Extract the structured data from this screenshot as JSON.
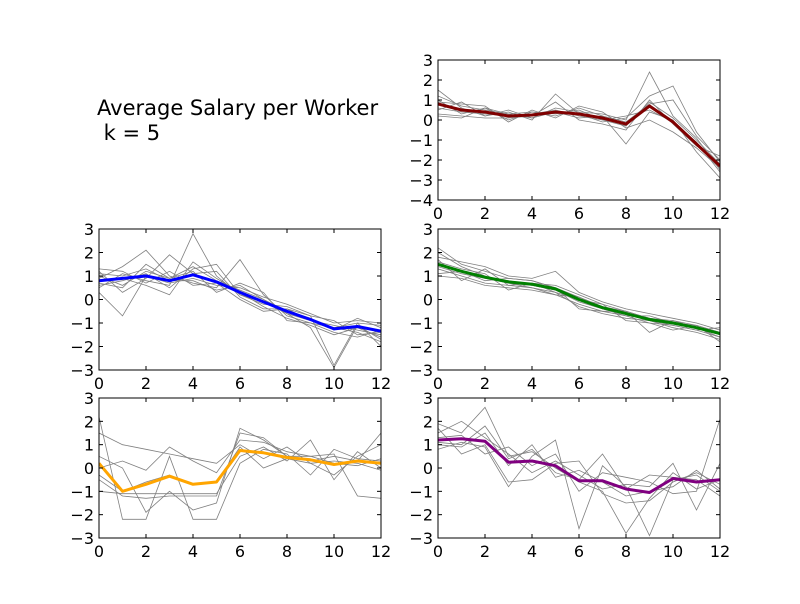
{
  "figure": {
    "title_line1": "Average Salary per Worker",
    "title_line2": " k = 5"
  },
  "chart_data": [
    {
      "type": "line",
      "panel": "top-right",
      "x": [
        0,
        1,
        2,
        3,
        4,
        5,
        6,
        7,
        8,
        9,
        10,
        11,
        12
      ],
      "xlim": [
        0,
        12
      ],
      "ylim": [
        -4,
        3
      ],
      "xticks": [
        0,
        2,
        4,
        6,
        8,
        10,
        12
      ],
      "yticks": [
        -4,
        -3,
        -2,
        -1,
        0,
        1,
        2,
        3
      ],
      "centroid_color": "#800000",
      "centroid": [
        0.8,
        0.5,
        0.4,
        0.2,
        0.25,
        0.4,
        0.3,
        0.1,
        -0.2,
        0.7,
        -0.1,
        -1.2,
        -2.3
      ],
      "members": [
        [
          0.6,
          0.4,
          0.3,
          0.2,
          0.3,
          0.5,
          0.2,
          0.0,
          -0.3,
          0.9,
          0.1,
          -1.0,
          -2.2
        ],
        [
          1.2,
          0.7,
          0.5,
          0.3,
          0.1,
          0.6,
          0.4,
          0.3,
          0.0,
          2.4,
          0.2,
          -0.9,
          -2.5
        ],
        [
          0.2,
          0.1,
          0.6,
          0.0,
          0.4,
          0.2,
          0.6,
          0.2,
          -1.2,
          0.4,
          0.0,
          -1.6,
          -2.9
        ],
        [
          1.5,
          0.6,
          0.2,
          0.4,
          0.0,
          1.3,
          0.3,
          -0.1,
          0.1,
          1.2,
          1.7,
          -0.6,
          -2.1
        ],
        [
          0.9,
          0.8,
          0.7,
          -0.1,
          0.5,
          0.1,
          0.7,
          0.4,
          -0.4,
          0.0,
          -0.6,
          -1.4,
          -2.4
        ],
        [
          0.3,
          0.2,
          0.1,
          0.1,
          0.2,
          0.9,
          0.0,
          -0.2,
          -0.5,
          1.0,
          -0.2,
          -1.3,
          -1.8
        ],
        [
          1.0,
          0.3,
          0.6,
          0.3,
          0.4,
          0.3,
          0.5,
          0.0,
          0.2,
          0.5,
          -0.1,
          -1.1,
          -2.6
        ],
        [
          0.5,
          0.9,
          0.2,
          0.5,
          0.1,
          0.4,
          0.1,
          0.2,
          -0.1,
          0.8,
          1.0,
          -0.8,
          -2.0
        ]
      ]
    },
    {
      "type": "line",
      "panel": "middle-left",
      "x": [
        0,
        1,
        2,
        3,
        4,
        5,
        6,
        7,
        8,
        9,
        10,
        11,
        12
      ],
      "xlim": [
        0,
        12
      ],
      "ylim": [
        -3,
        3
      ],
      "xticks": [
        0,
        2,
        4,
        6,
        8,
        10,
        12
      ],
      "yticks": [
        -3,
        -2,
        -1,
        0,
        1,
        2,
        3
      ],
      "centroid_color": "#0000ff",
      "centroid": [
        0.8,
        0.9,
        1.0,
        0.8,
        1.05,
        0.75,
        0.3,
        -0.1,
        -0.5,
        -0.85,
        -1.25,
        -1.15,
        -1.35
      ],
      "members": [
        [
          1.0,
          0.6,
          1.2,
          0.9,
          1.4,
          0.8,
          0.4,
          0.0,
          -0.6,
          -0.9,
          -1.1,
          -1.3,
          -1.5
        ],
        [
          0.5,
          1.1,
          0.8,
          0.6,
          2.8,
          1.0,
          0.2,
          -0.2,
          -0.3,
          -0.7,
          -2.8,
          -1.0,
          -1.1
        ],
        [
          0.9,
          1.4,
          2.1,
          1.0,
          0.7,
          0.5,
          1.7,
          0.2,
          -0.7,
          -1.0,
          -1.4,
          -1.6,
          -1.3
        ],
        [
          1.2,
          0.3,
          0.9,
          1.9,
          1.1,
          1.2,
          0.1,
          -0.4,
          -0.4,
          -0.9,
          -1.2,
          -1.4,
          -1.8
        ],
        [
          0.3,
          -0.7,
          1.0,
          0.7,
          0.9,
          0.6,
          0.5,
          0.1,
          -0.2,
          -0.6,
          -1.0,
          -0.9,
          -1.0
        ],
        [
          0.8,
          0.9,
          0.6,
          0.2,
          1.6,
          0.9,
          0.3,
          -0.3,
          -0.8,
          -1.1,
          -1.5,
          -1.2,
          -1.6
        ],
        [
          1.1,
          1.0,
          1.3,
          0.8,
          0.8,
          0.4,
          0.6,
          0.0,
          -0.5,
          -0.8,
          -1.3,
          -0.8,
          -1.2
        ],
        [
          0.6,
          0.8,
          1.1,
          0.5,
          1.3,
          1.5,
          0.2,
          -0.1,
          -0.6,
          -1.2,
          -2.9,
          -1.1,
          -1.7
        ],
        [
          1.3,
          1.2,
          0.7,
          1.2,
          0.6,
          0.7,
          0.0,
          -0.5,
          -0.4,
          -0.7,
          -0.9,
          -1.5,
          -1.4
        ],
        [
          0.7,
          0.5,
          1.5,
          0.9,
          1.2,
          0.3,
          0.7,
          0.3,
          -0.9,
          -1.0,
          -1.2,
          -1.0,
          -2.0
        ]
      ]
    },
    {
      "type": "line",
      "panel": "middle-right",
      "x": [
        0,
        1,
        2,
        3,
        4,
        5,
        6,
        7,
        8,
        9,
        10,
        11,
        12
      ],
      "xlim": [
        0,
        12
      ],
      "ylim": [
        -3,
        3
      ],
      "xticks": [
        0,
        2,
        4,
        6,
        8,
        10,
        12
      ],
      "yticks": [
        -3,
        -2,
        -1,
        0,
        1,
        2,
        3
      ],
      "centroid_color": "#008000",
      "centroid": [
        1.5,
        1.2,
        0.95,
        0.75,
        0.65,
        0.45,
        0.0,
        -0.35,
        -0.6,
        -0.85,
        -1.0,
        -1.2,
        -1.45
      ],
      "members": [
        [
          2.2,
          1.5,
          1.2,
          0.9,
          0.8,
          0.5,
          0.1,
          -0.3,
          -0.5,
          -0.8,
          -0.9,
          -1.1,
          -1.4
        ],
        [
          1.0,
          0.9,
          0.6,
          0.5,
          0.4,
          0.2,
          -0.2,
          -0.5,
          -0.7,
          -1.0,
          -1.1,
          -1.3,
          -1.6
        ],
        [
          1.8,
          1.6,
          1.4,
          1.0,
          0.9,
          1.2,
          0.3,
          -0.1,
          -0.4,
          -0.6,
          -0.8,
          -1.0,
          -1.3
        ],
        [
          1.3,
          1.0,
          0.7,
          0.6,
          0.5,
          0.3,
          -0.3,
          -0.6,
          -0.8,
          -0.9,
          -1.2,
          -1.4,
          -1.7
        ],
        [
          1.6,
          1.3,
          1.1,
          0.4,
          0.7,
          0.6,
          0.2,
          -0.2,
          -0.5,
          -1.4,
          -0.9,
          -1.2,
          -1.5
        ],
        [
          1.4,
          1.1,
          0.9,
          0.8,
          0.6,
          0.4,
          -0.1,
          -0.4,
          -0.7,
          -0.7,
          -1.0,
          -1.1,
          -1.8
        ],
        [
          2.0,
          1.4,
          1.0,
          0.7,
          0.5,
          0.2,
          0.1,
          -0.3,
          -0.6,
          -0.9,
          -1.1,
          -1.3,
          -1.2
        ],
        [
          1.1,
          1.2,
          0.8,
          0.9,
          0.8,
          0.5,
          -0.4,
          -0.5,
          -0.5,
          -0.8,
          -1.0,
          -1.2,
          -1.6
        ],
        [
          1.7,
          0.8,
          1.3,
          0.6,
          0.7,
          0.3,
          0.0,
          -0.2,
          -0.9,
          -1.0,
          -1.3,
          -1.1,
          -1.4
        ],
        [
          1.5,
          1.2,
          0.9,
          0.7,
          0.6,
          0.4,
          0.1,
          -0.4,
          -0.6,
          -0.8,
          -1.0,
          -1.2,
          -1.5
        ]
      ]
    },
    {
      "type": "line",
      "panel": "bottom-left",
      "x": [
        0,
        1,
        2,
        3,
        4,
        5,
        6,
        7,
        8,
        9,
        10,
        11,
        12
      ],
      "xlim": [
        0,
        12
      ],
      "ylim": [
        -3,
        3
      ],
      "xticks": [
        0,
        2,
        4,
        6,
        8,
        10,
        12
      ],
      "yticks": [
        -3,
        -2,
        -1,
        0,
        1,
        2,
        3
      ],
      "centroid_color": "#ffa500",
      "centroid": [
        0.2,
        -1.0,
        -0.7,
        -0.35,
        -0.7,
        -0.6,
        0.75,
        0.65,
        0.45,
        0.35,
        0.15,
        0.3,
        0.2
      ],
      "members": [
        [
          -0.5,
          -1.2,
          -1.3,
          -1.2,
          -1.2,
          -1.2,
          1.5,
          1.3,
          0.5,
          0.3,
          0.5,
          0.3,
          1.5
        ],
        [
          1.5,
          1.0,
          0.8,
          0.6,
          0.4,
          0.2,
          1.0,
          0.4,
          0.9,
          0.2,
          -0.3,
          0.5,
          1.0
        ],
        [
          2.2,
          -2.2,
          -2.2,
          0.5,
          -2.2,
          -2.2,
          0.2,
          0.8,
          0.6,
          -0.3,
          0.8,
          0.4,
          0.3
        ],
        [
          0.5,
          0.0,
          -1.9,
          -1.0,
          -1.8,
          -1.5,
          1.7,
          1.2,
          0.5,
          0.5,
          0.6,
          -1.2,
          -1.3
        ],
        [
          -1.0,
          -1.1,
          -1.1,
          -1.1,
          -1.1,
          -1.1,
          0.5,
          0.9,
          0.3,
          1.2,
          -0.5,
          0.7,
          0.0
        ],
        [
          0.0,
          0.3,
          -0.1,
          0.9,
          0.3,
          -0.2,
          1.2,
          1.1,
          0.7,
          0.5,
          0.2,
          0.1,
          0.4
        ],
        [
          -0.3,
          -1.0,
          -0.6,
          -0.3,
          -0.7,
          -0.6,
          0.9,
          0.0,
          0.4,
          0.2,
          0.3,
          0.2,
          -0.1
        ]
      ]
    },
    {
      "type": "line",
      "panel": "bottom-right",
      "x": [
        0,
        1,
        2,
        3,
        4,
        5,
        6,
        7,
        8,
        9,
        10,
        11,
        12
      ],
      "xlim": [
        0,
        12
      ],
      "ylim": [
        -3,
        3
      ],
      "xticks": [
        0,
        2,
        4,
        6,
        8,
        10,
        12
      ],
      "yticks": [
        -3,
        -2,
        -1,
        0,
        1,
        2,
        3
      ],
      "centroid_color": "#800080",
      "centroid": [
        1.2,
        1.25,
        1.15,
        0.25,
        0.3,
        0.1,
        -0.55,
        -0.55,
        -0.9,
        -1.05,
        -0.45,
        -0.6,
        -0.5
      ],
      "members": [
        [
          1.9,
          1.5,
          2.6,
          0.5,
          0.7,
          0.0,
          -0.6,
          -1.0,
          -2.8,
          -1.3,
          -0.2,
          -0.9,
          -0.5
        ],
        [
          0.8,
          1.1,
          0.9,
          -0.8,
          0.5,
          1.2,
          -2.6,
          0.1,
          -0.8,
          -2.9,
          -0.5,
          -0.3,
          -1.0
        ],
        [
          1.5,
          2.0,
          1.3,
          0.6,
          -0.2,
          0.3,
          -0.3,
          -0.9,
          -0.7,
          -0.8,
          0.2,
          -1.8,
          0.2
        ],
        [
          1.0,
          0.9,
          1.5,
          0.1,
          1.0,
          -0.4,
          -0.1,
          -0.6,
          -1.2,
          -1.0,
          -0.8,
          -0.1,
          -0.9
        ],
        [
          1.3,
          1.4,
          0.6,
          0.9,
          0.1,
          0.6,
          -1.0,
          -0.2,
          -0.4,
          -0.6,
          -1.1,
          -1.0,
          2.1
        ],
        [
          1.7,
          0.6,
          1.0,
          -0.6,
          -0.5,
          0.2,
          0.3,
          -1.1,
          -1.5,
          -1.4,
          -0.6,
          -0.2,
          -0.7
        ],
        [
          1.1,
          1.0,
          1.8,
          0.4,
          0.8,
          -0.2,
          -0.5,
          0.6,
          -0.9,
          -0.3,
          -0.4,
          -0.5,
          -1.2
        ]
      ]
    }
  ]
}
